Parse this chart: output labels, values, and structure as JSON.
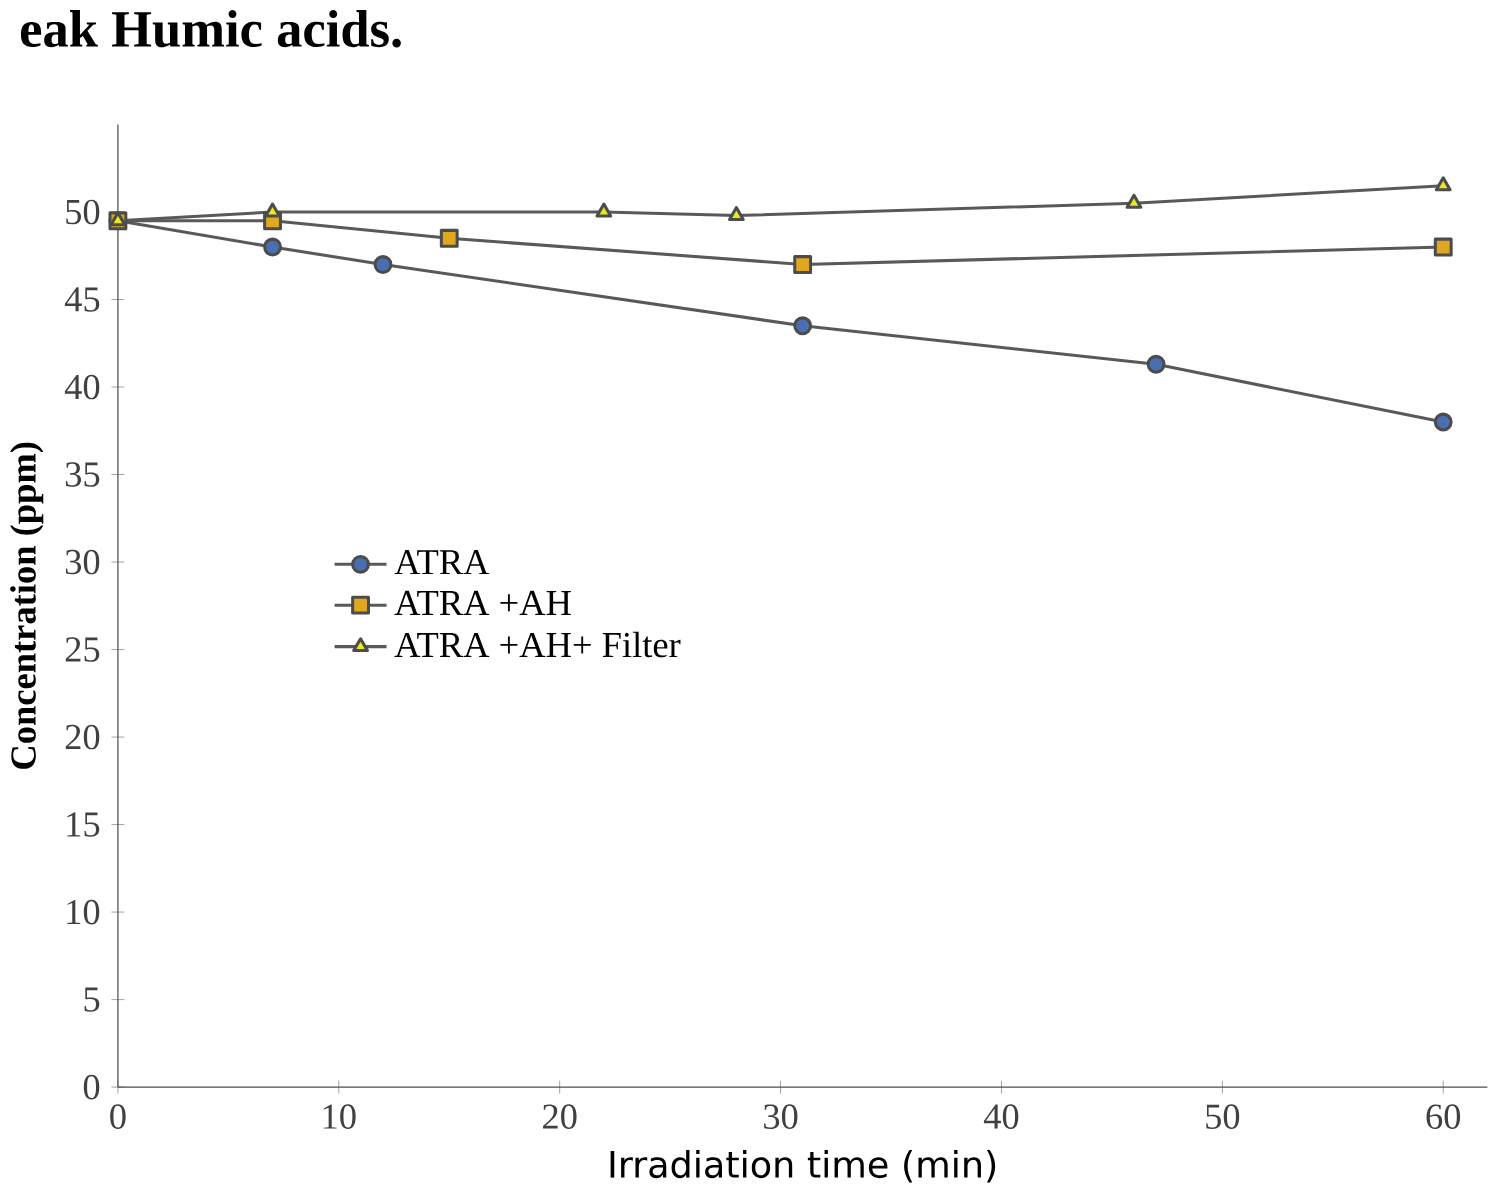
{
  "chart_data": {
    "type": "line",
    "title": "eak Humic acids.",
    "xlabel": "Irradiation time (min)",
    "ylabel": "Concentration (ppm)",
    "xlim": [
      0,
      62
    ],
    "ylim": [
      0,
      55
    ],
    "xticks": [
      0,
      10,
      20,
      30,
      40,
      50,
      60
    ],
    "yticks": [
      0,
      5,
      10,
      15,
      20,
      25,
      30,
      35,
      40,
      45,
      50
    ],
    "legend": "left",
    "grid": false,
    "line_style": "solid",
    "series": [
      {
        "name": "ATRA",
        "color": "#4a6fb0",
        "marker": "circle",
        "x": [
          0,
          7,
          12,
          31,
          47,
          60
        ],
        "values": [
          49.5,
          48,
          47,
          43.5,
          41.3,
          38
        ]
      },
      {
        "name": "ATRA +AH",
        "color": "#e0a820",
        "marker": "square",
        "x": [
          0,
          7,
          15,
          31,
          60
        ],
        "values": [
          49.5,
          49.5,
          48.5,
          47,
          48
        ]
      },
      {
        "name": "ATRA +AH+  Filter",
        "color": "#e8e820",
        "marker": "triangle",
        "x": [
          0,
          7,
          22,
          28,
          46,
          60
        ],
        "values": [
          49.5,
          50,
          50,
          49.8,
          50.5,
          51.5
        ]
      }
    ]
  }
}
